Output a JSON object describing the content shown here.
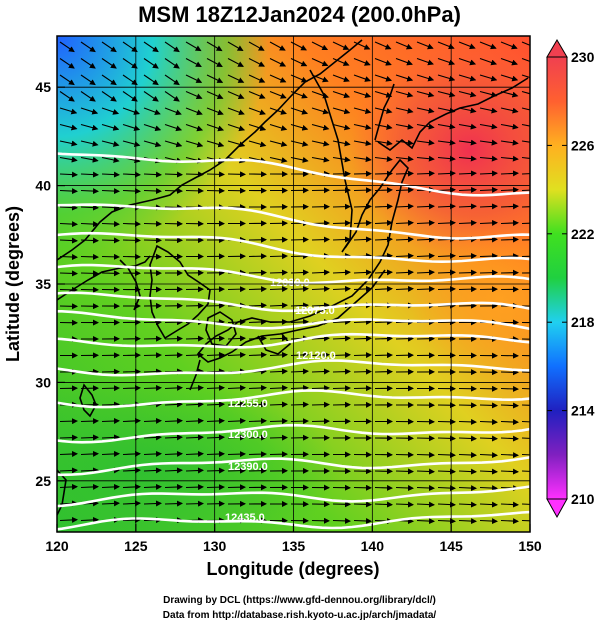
{
  "title": "MSM 18Z12Jan2024 (200.0hPa)",
  "credits": {
    "line1": "Drawing by DCL (https://www.gfd-dennou.org/library/dcl/)",
    "line2": "Data from http://database.rish.kyoto-u.ac.jp/arch/jmadata/"
  },
  "map": {
    "xlabel": "Longitude (degrees)",
    "ylabel": "Latitude  (degrees)",
    "xlim": [
      120,
      150
    ],
    "ylim": [
      22.4,
      47.6
    ],
    "x_ticks": [
      120,
      125,
      130,
      135,
      140,
      145,
      150
    ],
    "x_tick_labels": [
      "120",
      "125",
      "130",
      "135",
      "140",
      "145",
      "150"
    ],
    "y_ticks": [
      25,
      30,
      35,
      40,
      45
    ],
    "y_tick_labels": [
      "25",
      "30",
      "35",
      "40",
      "45"
    ],
    "grid": true,
    "field": "temperature shading with wind vectors and height contours",
    "contour_labels": [
      "12435.0",
      "12390.0",
      "12300.0",
      "12255.0",
      "12120.0",
      "12075.0",
      "12030.0"
    ]
  },
  "colorbar": {
    "min": 210,
    "max": 230,
    "tick_labels": [
      "230",
      "226",
      "222",
      "218",
      "214",
      "210"
    ],
    "colors": [
      "#ff30ff",
      "#4020c0",
      "#1070ff",
      "#20d0f0",
      "#20e040",
      "#e8e020",
      "#ff8020",
      "#f04050"
    ]
  }
}
